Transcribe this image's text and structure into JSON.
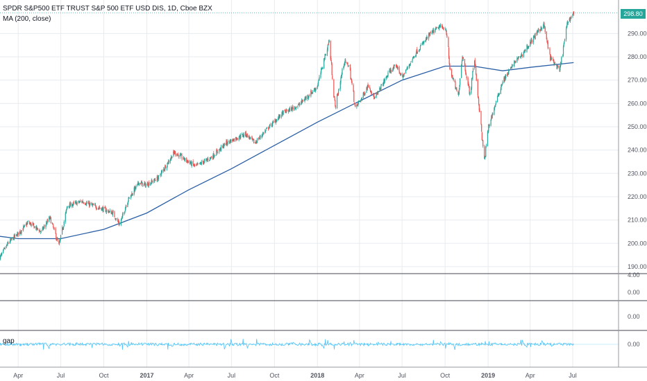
{
  "header": {
    "title": "SPDR S&P500 ETF TRUST S&P 500 ETF USD DIS, 1D, Cboe BZX",
    "indicator": "MA (200, close)"
  },
  "last_price": "298.80",
  "panes": [
    {
      "id": "volume",
      "tick_labels": [
        "4.00",
        "0.00"
      ]
    },
    {
      "id": "pane2",
      "tick_labels": [
        "0.00"
      ]
    },
    {
      "id": "gap",
      "title": "gap",
      "tick_labels": [
        "0.00"
      ]
    }
  ],
  "colors": {
    "up": "#26a69a",
    "down": "#ef5350",
    "ma": "#2a5fa5",
    "gap_line": "#4fc3f7",
    "grid": "#e8ebef",
    "last_price": "#26a69a"
  },
  "chart_data": {
    "type": "candlestick",
    "title": "SPDR S&P500 ETF TRUST S&P 500 ETF USD DIS, 1D, Cboe BZX",
    "y_ticks": [
      190,
      200,
      210,
      220,
      230,
      240,
      250,
      260,
      270,
      280,
      290
    ],
    "ylim": [
      187,
      302
    ],
    "x_tick_labels": [
      "Apr",
      "Jul",
      "Oct",
      "2017",
      "Apr",
      "Jul",
      "Oct",
      "2018",
      "Apr",
      "Jul",
      "Oct",
      "2019",
      "Apr",
      "Jul"
    ],
    "x_tick_dates": [
      "2016-04-01",
      "2016-07-01",
      "2016-10-01",
      "2017-01-01",
      "2017-04-01",
      "2017-07-01",
      "2017-10-01",
      "2018-01-01",
      "2018-04-01",
      "2018-07-01",
      "2018-10-01",
      "2019-01-01",
      "2019-04-01",
      "2019-07-01"
    ],
    "xlim": [
      "2016-02-22",
      "2019-10-07"
    ],
    "price_path": [
      [
        "2016-02-22",
        194
      ],
      [
        "2016-03-10",
        200
      ],
      [
        "2016-04-10",
        206
      ],
      [
        "2016-04-22",
        209
      ],
      [
        "2016-05-20",
        205
      ],
      [
        "2016-06-08",
        211
      ],
      [
        "2016-06-27",
        199
      ],
      [
        "2016-07-15",
        216
      ],
      [
        "2016-08-15",
        218
      ],
      [
        "2016-09-10",
        216
      ],
      [
        "2016-09-25",
        215
      ],
      [
        "2016-10-20",
        213
      ],
      [
        "2016-11-04",
        208
      ],
      [
        "2016-11-20",
        218
      ],
      [
        "2016-12-15",
        226
      ],
      [
        "2016-12-31",
        225
      ],
      [
        "2017-01-25",
        228
      ],
      [
        "2017-03-01",
        239
      ],
      [
        "2017-04-15",
        233
      ],
      [
        "2017-05-20",
        237
      ],
      [
        "2017-06-20",
        243
      ],
      [
        "2017-07-31",
        247
      ],
      [
        "2017-08-20",
        243
      ],
      [
        "2017-09-15",
        249
      ],
      [
        "2017-10-20",
        256
      ],
      [
        "2017-11-20",
        259
      ],
      [
        "2017-12-31",
        267
      ],
      [
        "2018-01-26",
        287
      ],
      [
        "2018-02-08",
        258
      ],
      [
        "2018-02-27",
        278
      ],
      [
        "2018-03-10",
        276
      ],
      [
        "2018-03-23",
        258
      ],
      [
        "2018-04-05",
        262
      ],
      [
        "2018-04-20",
        268
      ],
      [
        "2018-05-03",
        262
      ],
      [
        "2018-06-05",
        274
      ],
      [
        "2018-06-20",
        276
      ],
      [
        "2018-07-01",
        271
      ],
      [
        "2018-07-31",
        282
      ],
      [
        "2018-08-31",
        290
      ],
      [
        "2018-09-20",
        293
      ],
      [
        "2018-10-03",
        292
      ],
      [
        "2018-10-11",
        275
      ],
      [
        "2018-10-29",
        263
      ],
      [
        "2018-11-07",
        281
      ],
      [
        "2018-11-23",
        264
      ],
      [
        "2018-12-03",
        279
      ],
      [
        "2018-12-24",
        235
      ],
      [
        "2019-01-02",
        250
      ],
      [
        "2019-01-31",
        269
      ],
      [
        "2019-02-28",
        278
      ],
      [
        "2019-03-15",
        281
      ],
      [
        "2019-04-15",
        290
      ],
      [
        "2019-04-30",
        294
      ],
      [
        "2019-05-13",
        280
      ],
      [
        "2019-06-03",
        274
      ],
      [
        "2019-06-20",
        295
      ],
      [
        "2019-07-03",
        298.8
      ]
    ],
    "ma_200_path": [
      [
        "2016-02-22",
        203
      ],
      [
        "2016-04-01",
        202
      ],
      [
        "2016-07-01",
        202
      ],
      [
        "2016-10-01",
        206
      ],
      [
        "2017-01-01",
        213
      ],
      [
        "2017-04-01",
        223
      ],
      [
        "2017-07-01",
        232
      ],
      [
        "2017-10-01",
        242
      ],
      [
        "2018-01-01",
        252
      ],
      [
        "2018-04-01",
        261
      ],
      [
        "2018-07-01",
        270
      ],
      [
        "2018-10-01",
        276
      ],
      [
        "2018-12-01",
        276
      ],
      [
        "2019-02-01",
        274
      ],
      [
        "2019-04-01",
        275.5
      ],
      [
        "2019-07-03",
        277.5
      ]
    ],
    "last_close": 298.8
  }
}
